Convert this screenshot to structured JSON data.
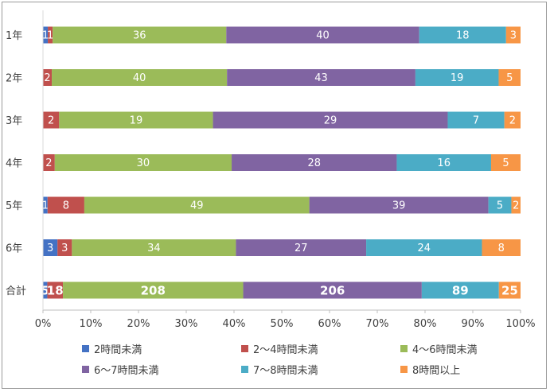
{
  "chart_data": {
    "type": "bar",
    "orientation": "horizontal",
    "stacked": "percent",
    "categories": [
      "1年",
      "2年",
      "3年",
      "4年",
      "5年",
      "6年",
      "合計"
    ],
    "series": [
      {
        "name": "2時間未満",
        "color": "#4472c4",
        "values": [
          1,
          0,
          0,
          0,
          1,
          3,
          5
        ]
      },
      {
        "name": "2～4時間未満",
        "color": "#c0504d",
        "values": [
          1,
          2,
          2,
          2,
          8,
          3,
          18
        ]
      },
      {
        "name": "4～6時間未満",
        "color": "#9bbb59",
        "values": [
          36,
          40,
          19,
          30,
          49,
          34,
          208
        ]
      },
      {
        "name": "6～7時間未満",
        "color": "#8064a2",
        "values": [
          40,
          43,
          29,
          28,
          39,
          27,
          206
        ]
      },
      {
        "name": "7～8時間未満",
        "color": "#4bacc6",
        "values": [
          18,
          19,
          7,
          16,
          5,
          24,
          89
        ]
      },
      {
        "name": "8時間以上",
        "color": "#f79646",
        "values": [
          3,
          5,
          2,
          5,
          2,
          8,
          25
        ]
      }
    ],
    "x_ticks": [
      "0%",
      "10%",
      "20%",
      "30%",
      "40%",
      "50%",
      "60%",
      "70%",
      "80%",
      "90%",
      "100%"
    ],
    "xlim": [
      0,
      100
    ],
    "grid": false,
    "legend_position": "bottom",
    "bold_categories": [
      "合計"
    ]
  }
}
